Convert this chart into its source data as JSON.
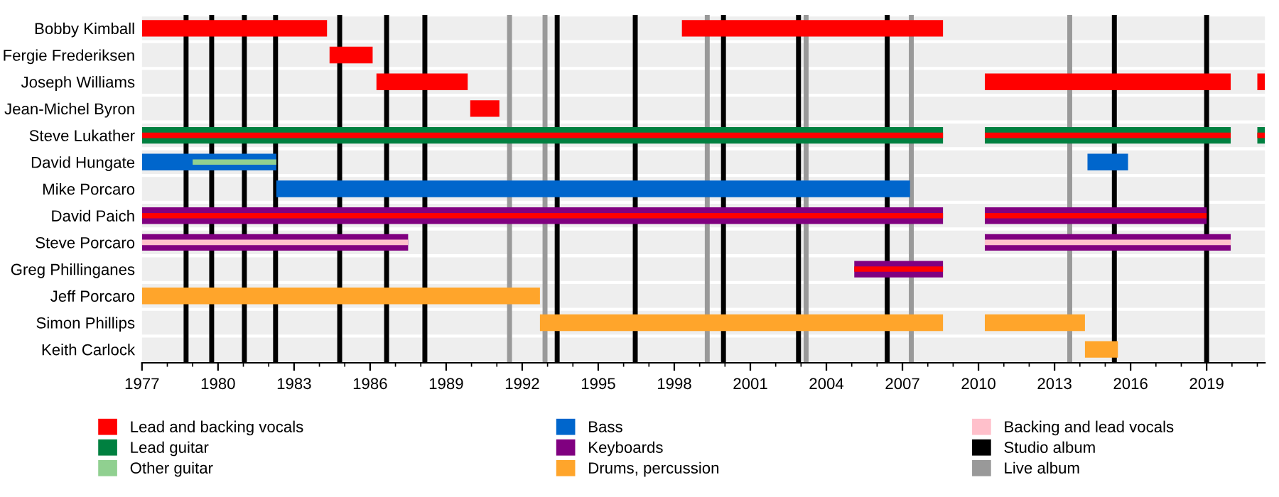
{
  "chart_data": {
    "type": "bar",
    "orientation": "horizontal",
    "categories": [
      "Bobby Kimball",
      "Fergie Frederiksen",
      "Joseph Williams",
      "Jean-Michel Byron",
      "Steve Lukather",
      "David Hungate",
      "Mike Porcaro",
      "David Paich",
      "Steve Porcaro",
      "Greg Phillinganes",
      "Jeff Porcaro",
      "Simon Phillips",
      "Keith Carlock"
    ],
    "series": [
      {
        "name": "Lead and backing vocals",
        "color": "#ff0000",
        "base": [
          1977,
          1984.4,
          1986.25,
          1989.95,
          1977,
          null,
          null,
          1977,
          null,
          2005.1,
          null,
          null,
          null
        ],
        "values": [
          7.3,
          1.7,
          3.6,
          1.15,
          31.6,
          null,
          null,
          31.6,
          null,
          3.5,
          null,
          null,
          null
        ]
      },
      {
        "name": "Lead guitar",
        "color": "#008040",
        "base": [
          null,
          null,
          null,
          null,
          1977,
          null,
          null,
          null,
          null,
          null,
          null,
          null,
          null
        ],
        "values": [
          null,
          null,
          null,
          null,
          31.6,
          null,
          null,
          null,
          null,
          null,
          null,
          null,
          null
        ]
      },
      {
        "name": "Other guitar",
        "color": "#90d090",
        "base": [
          null,
          null,
          null,
          null,
          null,
          1979.0,
          null,
          null,
          null,
          null,
          null,
          null,
          null
        ],
        "values": [
          null,
          null,
          null,
          null,
          null,
          3.3,
          null,
          null,
          null,
          null,
          null,
          null,
          null
        ]
      },
      {
        "name": "Bass",
        "color": "#0066cc",
        "base": [
          null,
          null,
          null,
          null,
          null,
          1977,
          1982.3,
          null,
          null,
          null,
          null,
          null,
          null
        ],
        "values": [
          null,
          null,
          null,
          null,
          null,
          5.3,
          25.0,
          null,
          null,
          null,
          null,
          null,
          null
        ]
      },
      {
        "name": "Keyboards",
        "color": "#800080",
        "base": [
          null,
          null,
          null,
          null,
          null,
          null,
          null,
          1977,
          1977,
          2005.1,
          null,
          null,
          null
        ],
        "values": [
          null,
          null,
          null,
          null,
          null,
          null,
          null,
          31.6,
          10.5,
          3.5,
          null,
          null,
          null
        ]
      },
      {
        "name": "Drums, percussion",
        "color": "#ffa52b",
        "base": [
          null,
          null,
          null,
          null,
          null,
          null,
          null,
          null,
          null,
          null,
          1977,
          1992.7,
          2014.2
        ],
        "values": [
          null,
          null,
          null,
          null,
          null,
          null,
          null,
          null,
          null,
          null,
          15.7,
          15.9,
          1.3
        ]
      },
      {
        "name": "Backing and lead vocals",
        "color": "#ffc0cb",
        "base": [
          null,
          null,
          null,
          null,
          null,
          null,
          null,
          null,
          1977,
          null,
          null,
          null,
          null
        ],
        "values": [
          null,
          null,
          null,
          null,
          null,
          null,
          null,
          null,
          10.5,
          null,
          null,
          null,
          null
        ]
      },
      {
        "color": "#ff0000",
        "base": [
          1998.3,
          null,
          2010.25,
          null,
          2010.25,
          null,
          null,
          2010.25,
          null,
          null,
          null,
          null,
          null
        ],
        "values": [
          10.3,
          null,
          9.7,
          null,
          9.7,
          null,
          null,
          8.75,
          null,
          null,
          null,
          null,
          null
        ]
      },
      {
        "color": "#ff0000",
        "base": [
          null,
          null,
          2021.0,
          null,
          2021.0,
          null,
          null,
          null,
          null,
          null,
          null,
          null,
          null
        ],
        "values": [
          null,
          null,
          0.3,
          null,
          0.3,
          null,
          null,
          null,
          null,
          null,
          null,
          null,
          null
        ]
      },
      {
        "color": "#008040",
        "base": [
          null,
          null,
          null,
          null,
          2010.25,
          null,
          null,
          null,
          null,
          null,
          null,
          null,
          null
        ],
        "values": [
          null,
          null,
          null,
          null,
          9.7,
          null,
          null,
          null,
          null,
          null,
          null,
          null,
          null
        ]
      },
      {
        "color": "#008040",
        "base": [
          null,
          null,
          null,
          null,
          2021.0,
          null,
          null,
          null,
          null,
          null,
          null,
          null,
          null
        ],
        "values": [
          null,
          null,
          null,
          null,
          0.3,
          null,
          null,
          null,
          null,
          null,
          null,
          null,
          null
        ]
      },
      {
        "color": "#0066cc",
        "base": [
          null,
          null,
          null,
          null,
          null,
          2014.3,
          null,
          null,
          null,
          null,
          null,
          null,
          null
        ],
        "values": [
          null,
          null,
          null,
          null,
          null,
          1.6,
          null,
          null,
          null,
          null,
          null,
          null,
          null
        ]
      },
      {
        "color": "#800080",
        "base": [
          null,
          null,
          null,
          null,
          null,
          null,
          null,
          2010.25,
          2010.25,
          null,
          null,
          null,
          null
        ],
        "values": [
          null,
          null,
          null,
          null,
          null,
          null,
          null,
          8.75,
          9.7,
          null,
          null,
          null,
          null
        ]
      },
      {
        "color": "#ffa52b",
        "base": [
          null,
          null,
          null,
          null,
          null,
          null,
          null,
          null,
          null,
          null,
          null,
          2010.25,
          null
        ],
        "values": [
          null,
          null,
          null,
          null,
          null,
          null,
          null,
          null,
          null,
          null,
          null,
          3.95,
          null
        ]
      },
      {
        "color": "#ffc0cb",
        "base": [
          null,
          null,
          null,
          null,
          null,
          null,
          null,
          null,
          2010.25,
          null,
          null,
          null,
          null
        ],
        "values": [
          null,
          null,
          null,
          null,
          null,
          null,
          null,
          null,
          9.7,
          null,
          null,
          null,
          null
        ]
      }
    ],
    "xlim": [
      1977,
      2021.3
    ],
    "xticks": [
      1977,
      1980,
      1983,
      1986,
      1989,
      1992,
      1995,
      1998,
      2001,
      2004,
      2007,
      2010,
      2013,
      2016,
      2019
    ],
    "grid": "y",
    "legend": "bottom",
    "ref_lines": [
      {
        "axis": "x",
        "value": 1978.74,
        "label": "Studio album",
        "color": "#000000"
      },
      {
        "axis": "x",
        "value": 1979.75,
        "color": "#000000"
      },
      {
        "axis": "x",
        "value": 1981.04,
        "color": "#000000"
      },
      {
        "axis": "x",
        "value": 1982.27,
        "color": "#000000"
      },
      {
        "axis": "x",
        "value": 1984.8,
        "color": "#000000"
      },
      {
        "axis": "x",
        "value": 1986.65,
        "color": "#000000"
      },
      {
        "axis": "x",
        "value": 1988.16,
        "color": "#000000"
      },
      {
        "axis": "x",
        "value": 1993.38,
        "color": "#000000"
      },
      {
        "axis": "x",
        "value": 1996.46,
        "color": "#000000"
      },
      {
        "axis": "x",
        "value": 1999.94,
        "color": "#000000"
      },
      {
        "axis": "x",
        "value": 2002.9,
        "color": "#000000"
      },
      {
        "axis": "x",
        "value": 2006.4,
        "color": "#000000"
      },
      {
        "axis": "x",
        "value": 2015.36,
        "color": "#000000"
      },
      {
        "axis": "x",
        "value": 2019.0,
        "color": "#000000"
      },
      {
        "axis": "x",
        "value": 1991.5,
        "label": "Live album",
        "color": "#999999"
      },
      {
        "axis": "x",
        "value": 1992.9,
        "color": "#999999"
      },
      {
        "axis": "x",
        "value": 1999.3,
        "color": "#999999"
      },
      {
        "axis": "x",
        "value": 2003.2,
        "color": "#999999"
      },
      {
        "axis": "x",
        "value": 2007.35,
        "color": "#999999"
      },
      {
        "axis": "x",
        "value": 2013.6,
        "color": "#999999"
      }
    ]
  }
}
